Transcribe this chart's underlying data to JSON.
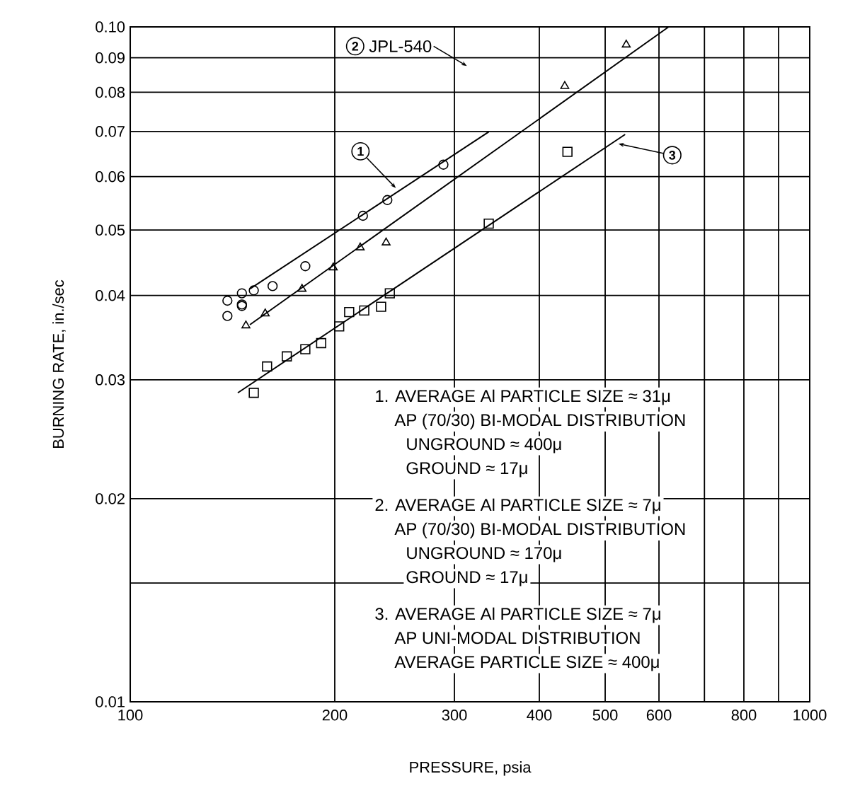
{
  "chart_data": {
    "type": "scatter",
    "xlabel": "PRESSURE, psia",
    "ylabel": "BURNING RATE, in./sec",
    "log": "xy",
    "grid": true,
    "xlim": [
      100,
      1000
    ],
    "ylim": [
      0.01,
      0.1
    ],
    "xticks": [
      100,
      200,
      300,
      400,
      500,
      600,
      {
        "value": 700,
        "label": null
      },
      800,
      {
        "value": 900,
        "label": null
      },
      1000
    ],
    "yticks": [
      {
        "value": 0.01,
        "label": "0.01"
      },
      {
        "value": 0.015,
        "label": null
      },
      {
        "value": 0.02,
        "label": "0.02"
      },
      {
        "value": 0.03,
        "label": "0.03"
      },
      {
        "value": 0.04,
        "label": "0.04"
      },
      {
        "value": 0.05,
        "label": "0.05"
      },
      {
        "value": 0.06,
        "label": "0.06"
      },
      {
        "value": 0.07,
        "label": "0.07"
      },
      {
        "value": 0.08,
        "label": "0.08"
      },
      {
        "value": 0.09,
        "label": "0.09"
      },
      {
        "value": 0.1,
        "label": "0.10"
      }
    ],
    "series": [
      {
        "marker": "circle",
        "color": "#000000",
        "x": [
          139,
          146,
          146,
          152,
          162,
          181,
          220,
          239,
          289,
          139,
          146
        ],
        "values": [
          0.0393,
          0.0403,
          0.0388,
          0.0407,
          0.0413,
          0.0442,
          0.0525,
          0.0554,
          0.0625,
          0.0373,
          0.0386
        ]
      },
      {
        "marker": "triangle",
        "color": "#000000",
        "x": [
          148,
          158,
          179,
          199,
          218,
          238,
          436,
          537
        ],
        "values": [
          0.0361,
          0.0376,
          0.0409,
          0.044,
          0.0471,
          0.0479,
          0.0817,
          0.0941
        ]
      },
      {
        "marker": "square",
        "color": "#000000",
        "x": [
          152,
          159,
          170,
          181,
          191,
          203,
          210,
          221,
          234,
          241,
          337,
          440
        ],
        "values": [
          0.0287,
          0.0314,
          0.0325,
          0.0333,
          0.034,
          0.036,
          0.0378,
          0.038,
          0.0385,
          0.0403,
          0.0511,
          0.0653
        ]
      },
      {
        "type": "line",
        "marker": "none",
        "color": "#000000",
        "x": [
          150,
          337
        ],
        "values": [
          0.0409,
          0.0699
        ]
      },
      {
        "type": "line",
        "marker": "none",
        "color": "#000000",
        "x": [
          150,
          620
        ],
        "values": [
          0.0362,
          0.1
        ]
      },
      {
        "type": "line",
        "marker": "none",
        "color": "#000000",
        "x": [
          144,
          535
        ],
        "values": [
          0.0287,
          0.0693
        ]
      }
    ],
    "annotations": [
      {
        "text": "1",
        "x": 246,
        "y": 0.0577
      },
      {
        "text": "JPL-540",
        "x": 313,
        "y": 0.0875
      },
      {
        "text": "3",
        "x": 523,
        "y": 0.0671
      },
      "2",
      "1. AVERAGE Al PARTICLE SIZE ≈ 31μ",
      "AP (70/30) BI-MODAL DISTRIBUTION",
      "UNGROUND ≈ 400μ",
      "GROUND     ≈   17μ",
      "2. AVERAGE Al PARTICLE SIZE ≈ 7μ",
      "AP (70/30) BI-MODAL DISTRIBUTION",
      "UNGROUND ≈ 170μ",
      "GROUND     ≈   17μ",
      "3. AVERAGE Al PARTICLE SIZE ≈ 7μ",
      "AP UNI-MODAL DISTRIBUTION",
      "AVERAGE PARTICLE SIZE ≈ 400μ"
    ]
  }
}
